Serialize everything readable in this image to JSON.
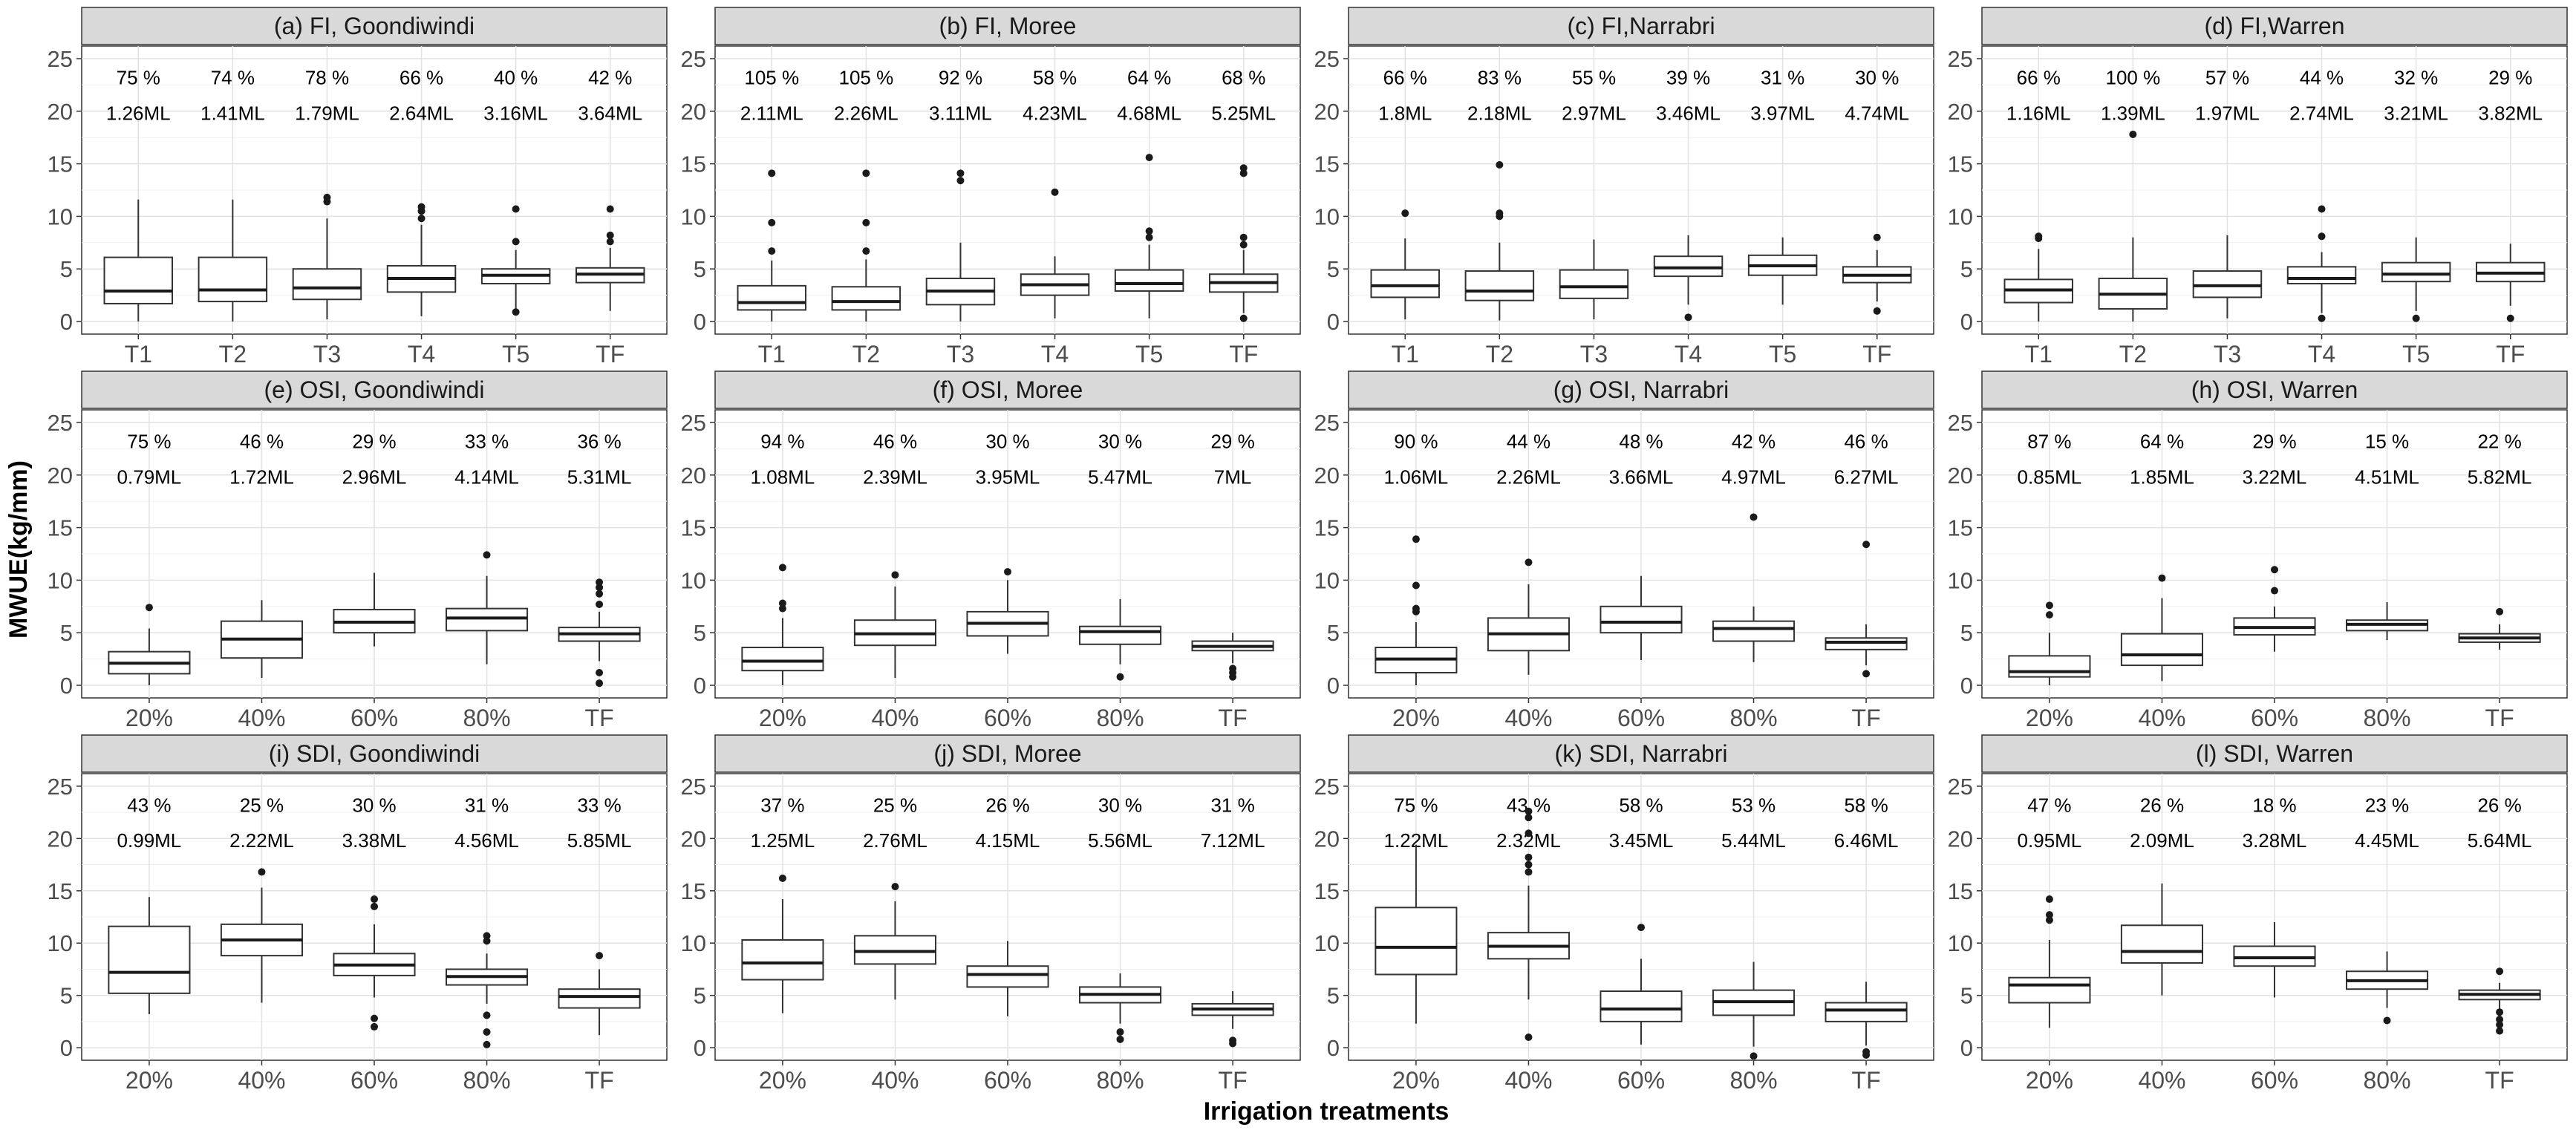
{
  "ylabel": "MWUE(kg/mm)",
  "xlabel": "Irrigation treatments",
  "yticks": [
    "0",
    "5",
    "10",
    "15",
    "20",
    "25"
  ],
  "chart_data": [
    {
      "type": "boxplot",
      "title": "(a) FI, Goondiwindi",
      "ylim": [
        0,
        25
      ],
      "categories": [
        "T1",
        "T2",
        "T3",
        "T4",
        "T5",
        "TF"
      ],
      "pct": [
        "75 %",
        "74 %",
        "78 %",
        "66 %",
        "40 %",
        "42 %"
      ],
      "vol": [
        "1.26ML",
        "1.41ML",
        "1.79ML",
        "2.64ML",
        "3.16ML",
        "3.64ML"
      ],
      "boxes": [
        {
          "lw": 0,
          "q1": 1.7,
          "med": 2.9,
          "q3": 6.1,
          "uw": 11.6,
          "out": []
        },
        {
          "lw": 0,
          "q1": 1.9,
          "med": 3.0,
          "q3": 6.1,
          "uw": 11.6,
          "out": []
        },
        {
          "lw": 0.2,
          "q1": 2.1,
          "med": 3.2,
          "q3": 5.0,
          "uw": 9.8,
          "out": [
            11.4,
            11.8
          ]
        },
        {
          "lw": 0.5,
          "q1": 2.8,
          "med": 4.1,
          "q3": 5.3,
          "uw": 9.2,
          "out": [
            9.8,
            10.5,
            10.9
          ]
        },
        {
          "lw": 1.2,
          "q1": 3.6,
          "med": 4.4,
          "q3": 5.0,
          "uw": 6.8,
          "out": [
            0.9,
            7.6,
            10.7
          ]
        },
        {
          "lw": 1.0,
          "q1": 3.7,
          "med": 4.5,
          "q3": 5.1,
          "uw": 7.0,
          "out": [
            7.6,
            8.2,
            10.7
          ]
        }
      ]
    },
    {
      "type": "boxplot",
      "title": "(b) FI, Moree",
      "ylim": [
        0,
        25
      ],
      "categories": [
        "T1",
        "T2",
        "T3",
        "T4",
        "T5",
        "TF"
      ],
      "pct": [
        "105 %",
        "105 %",
        "92 %",
        "58 %",
        "64 %",
        "68 %"
      ],
      "vol": [
        "2.11ML",
        "2.26ML",
        "3.11ML",
        "4.23ML",
        "4.68ML",
        "5.25ML"
      ],
      "boxes": [
        {
          "lw": 0,
          "q1": 1.1,
          "med": 1.8,
          "q3": 3.4,
          "uw": 5.8,
          "out": [
            6.7,
            9.4,
            14.1
          ]
        },
        {
          "lw": 0,
          "q1": 1.1,
          "med": 1.9,
          "q3": 3.3,
          "uw": 5.9,
          "out": [
            6.7,
            9.4,
            14.1
          ]
        },
        {
          "lw": 0,
          "q1": 1.6,
          "med": 2.9,
          "q3": 4.1,
          "uw": 7.5,
          "out": [
            13.4,
            14.1
          ]
        },
        {
          "lw": 0.3,
          "q1": 2.5,
          "med": 3.5,
          "q3": 4.5,
          "uw": 6.2,
          "out": [
            12.3
          ]
        },
        {
          "lw": 0.3,
          "q1": 2.9,
          "med": 3.6,
          "q3": 4.9,
          "uw": 7.3,
          "out": [
            8.0,
            8.6,
            15.6
          ]
        },
        {
          "lw": 0.8,
          "q1": 2.8,
          "med": 3.7,
          "q3": 4.5,
          "uw": 6.8,
          "out": [
            0.3,
            7.3,
            8.0,
            14.1,
            14.6
          ]
        }
      ]
    },
    {
      "type": "boxplot",
      "title": "(c) FI,Narrabri",
      "ylim": [
        0,
        25
      ],
      "categories": [
        "T1",
        "T2",
        "T3",
        "T4",
        "T5",
        "TF"
      ],
      "pct": [
        "66 %",
        "83 %",
        "55 %",
        "39 %",
        "31 %",
        "30 %"
      ],
      "vol": [
        "1.8ML",
        "2.18ML",
        "2.97ML",
        "3.46ML",
        "3.97ML",
        "4.74ML"
      ],
      "boxes": [
        {
          "lw": 0.2,
          "q1": 2.3,
          "med": 3.4,
          "q3": 4.9,
          "uw": 7.9,
          "out": [
            10.3
          ]
        },
        {
          "lw": 0.1,
          "q1": 2.0,
          "med": 2.9,
          "q3": 4.8,
          "uw": 7.5,
          "out": [
            10.0,
            10.3,
            14.9
          ]
        },
        {
          "lw": 0.2,
          "q1": 2.2,
          "med": 3.3,
          "q3": 4.9,
          "uw": 7.8,
          "out": []
        },
        {
          "lw": 1.6,
          "q1": 4.3,
          "med": 5.1,
          "q3": 6.2,
          "uw": 8.2,
          "out": [
            0.4
          ]
        },
        {
          "lw": 1.6,
          "q1": 4.4,
          "med": 5.3,
          "q3": 6.3,
          "uw": 8.0,
          "out": []
        },
        {
          "lw": 1.9,
          "q1": 3.7,
          "med": 4.4,
          "q3": 5.2,
          "uw": 6.8,
          "out": [
            1.0,
            8.0
          ]
        }
      ]
    },
    {
      "type": "boxplot",
      "title": "(d) FI,Warren",
      "ylim": [
        0,
        25
      ],
      "categories": [
        "T1",
        "T2",
        "T3",
        "T4",
        "T5",
        "TF"
      ],
      "pct": [
        "66 %",
        "100 %",
        "57 %",
        "44 %",
        "32 %",
        "29 %"
      ],
      "vol": [
        "1.16ML",
        "1.39ML",
        "1.97ML",
        "2.74ML",
        "3.21ML",
        "3.82ML"
      ],
      "boxes": [
        {
          "lw": 0,
          "q1": 1.8,
          "med": 3.0,
          "q3": 4.0,
          "uw": 6.9,
          "out": [
            7.9,
            8.1
          ]
        },
        {
          "lw": 0,
          "q1": 1.2,
          "med": 2.6,
          "q3": 4.1,
          "uw": 8.0,
          "out": [
            17.8
          ]
        },
        {
          "lw": 0.3,
          "q1": 2.3,
          "med": 3.4,
          "q3": 4.8,
          "uw": 8.2,
          "out": []
        },
        {
          "lw": 0.8,
          "q1": 3.6,
          "med": 4.1,
          "q3": 5.2,
          "uw": 6.6,
          "out": [
            0.3,
            8.1,
            10.7
          ]
        },
        {
          "lw": 1.0,
          "q1": 3.8,
          "med": 4.5,
          "q3": 5.6,
          "uw": 8.0,
          "out": [
            0.3
          ]
        },
        {
          "lw": 1.5,
          "q1": 3.8,
          "med": 4.6,
          "q3": 5.6,
          "uw": 7.4,
          "out": [
            0.3
          ]
        }
      ]
    },
    {
      "type": "boxplot",
      "title": "(e) OSI, Goondiwindi",
      "ylim": [
        0,
        25
      ],
      "categories": [
        "20%",
        "40%",
        "60%",
        "80%",
        "TF"
      ],
      "pct": [
        "75 %",
        "46 %",
        "29 %",
        "33 %",
        "36 %"
      ],
      "vol": [
        "0.79ML",
        "1.72ML",
        "2.96ML",
        "4.14ML",
        "5.31ML"
      ],
      "boxes": [
        {
          "lw": 0,
          "q1": 1.1,
          "med": 2.1,
          "q3": 3.2,
          "uw": 5.4,
          "out": [
            7.4
          ]
        },
        {
          "lw": 0.7,
          "q1": 2.6,
          "med": 4.4,
          "q3": 6.1,
          "uw": 8.1,
          "out": []
        },
        {
          "lw": 3.7,
          "q1": 5.0,
          "med": 6.0,
          "q3": 7.2,
          "uw": 10.7,
          "out": []
        },
        {
          "lw": 2.0,
          "q1": 5.2,
          "med": 6.4,
          "q3": 7.3,
          "uw": 10.4,
          "out": [
            12.4
          ]
        },
        {
          "lw": 2.3,
          "q1": 4.2,
          "med": 4.9,
          "q3": 5.5,
          "uw": 7.0,
          "out": [
            0.2,
            1.2,
            7.7,
            8.7,
            9.3,
            9.8
          ]
        }
      ]
    },
    {
      "type": "boxplot",
      "title": "(f) OSI, Moree",
      "ylim": [
        0,
        25
      ],
      "categories": [
        "20%",
        "40%",
        "60%",
        "80%",
        "TF"
      ],
      "pct": [
        "94 %",
        "46 %",
        "30 %",
        "30 %",
        "29 %"
      ],
      "vol": [
        "1.08ML",
        "2.39ML",
        "3.95ML",
        "5.47ML",
        "7ML"
      ],
      "boxes": [
        {
          "lw": 0,
          "q1": 1.4,
          "med": 2.3,
          "q3": 3.6,
          "uw": 6.4,
          "out": [
            7.3,
            7.8,
            11.2
          ]
        },
        {
          "lw": 0.7,
          "q1": 3.8,
          "med": 4.9,
          "q3": 6.2,
          "uw": 9.4,
          "out": [
            10.5
          ]
        },
        {
          "lw": 3.0,
          "q1": 4.7,
          "med": 5.9,
          "q3": 7.0,
          "uw": 10.0,
          "out": [
            10.8
          ]
        },
        {
          "lw": 2.0,
          "q1": 3.9,
          "med": 5.1,
          "q3": 5.6,
          "uw": 8.2,
          "out": [
            0.8
          ]
        },
        {
          "lw": 2.1,
          "q1": 3.3,
          "med": 3.7,
          "q3": 4.2,
          "uw": 5.0,
          "out": [
            0.8,
            1.2,
            1.6
          ]
        }
      ]
    },
    {
      "type": "boxplot",
      "title": "(g) OSI, Narrabri",
      "ylim": [
        0,
        25
      ],
      "categories": [
        "20%",
        "40%",
        "60%",
        "80%",
        "TF"
      ],
      "pct": [
        "90 %",
        "44 %",
        "48 %",
        "42 %",
        "46 %"
      ],
      "vol": [
        "1.06ML",
        "2.26ML",
        "3.66ML",
        "4.97ML",
        "6.27ML"
      ],
      "boxes": [
        {
          "lw": 0,
          "q1": 1.2,
          "med": 2.5,
          "q3": 3.6,
          "uw": 6.0,
          "out": [
            7.0,
            7.3,
            9.5,
            13.9
          ]
        },
        {
          "lw": 1.0,
          "q1": 3.3,
          "med": 4.9,
          "q3": 6.4,
          "uw": 9.6,
          "out": [
            11.7
          ]
        },
        {
          "lw": 2.4,
          "q1": 5.0,
          "med": 6.0,
          "q3": 7.5,
          "uw": 10.4,
          "out": []
        },
        {
          "lw": 2.2,
          "q1": 4.2,
          "med": 5.4,
          "q3": 6.1,
          "uw": 7.5,
          "out": [
            16.0
          ]
        },
        {
          "lw": 1.9,
          "q1": 3.4,
          "med": 4.1,
          "q3": 4.5,
          "uw": 5.8,
          "out": [
            1.1,
            13.4
          ]
        }
      ]
    },
    {
      "type": "boxplot",
      "title": "(h) OSI, Warren",
      "ylim": [
        0,
        25
      ],
      "categories": [
        "20%",
        "40%",
        "60%",
        "80%",
        "TF"
      ],
      "pct": [
        "87 %",
        "64 %",
        "29 %",
        "15 %",
        "22 %"
      ],
      "vol": [
        "0.85ML",
        "1.85ML",
        "3.22ML",
        "4.51ML",
        "5.82ML"
      ],
      "boxes": [
        {
          "lw": 0,
          "q1": 0.8,
          "med": 1.3,
          "q3": 2.8,
          "uw": 5.0,
          "out": [
            6.7,
            7.6
          ]
        },
        {
          "lw": 0.4,
          "q1": 1.9,
          "med": 2.9,
          "q3": 4.9,
          "uw": 8.3,
          "out": [
            10.2
          ]
        },
        {
          "lw": 3.2,
          "q1": 4.8,
          "med": 5.5,
          "q3": 6.4,
          "uw": 7.5,
          "out": [
            9.0,
            11.0
          ]
        },
        {
          "lw": 4.3,
          "q1": 5.2,
          "med": 5.8,
          "q3": 6.2,
          "uw": 7.9,
          "out": []
        },
        {
          "lw": 3.4,
          "q1": 4.1,
          "med": 4.5,
          "q3": 4.9,
          "uw": 5.8,
          "out": [
            7.0
          ]
        }
      ]
    },
    {
      "type": "boxplot",
      "title": "(i) SDI, Goondiwindi",
      "ylim": [
        0,
        25
      ],
      "categories": [
        "20%",
        "40%",
        "60%",
        "80%",
        "TF"
      ],
      "pct": [
        "43 %",
        "25 %",
        "30 %",
        "31 %",
        "33 %"
      ],
      "vol": [
        "0.99ML",
        "2.22ML",
        "3.38ML",
        "4.56ML",
        "5.85ML"
      ],
      "boxes": [
        {
          "lw": 3.2,
          "q1": 5.2,
          "med": 7.2,
          "q3": 11.6,
          "uw": 14.4,
          "out": []
        },
        {
          "lw": 4.3,
          "q1": 8.8,
          "med": 10.3,
          "q3": 11.8,
          "uw": 15.3,
          "out": [
            16.8
          ]
        },
        {
          "lw": 4.8,
          "q1": 6.9,
          "med": 7.9,
          "q3": 9.0,
          "uw": 11.8,
          "out": [
            2.0,
            2.8,
            13.5,
            14.2
          ]
        },
        {
          "lw": 4.2,
          "q1": 6.0,
          "med": 6.8,
          "q3": 7.5,
          "uw": 9.0,
          "out": [
            0.3,
            1.5,
            3.1,
            10.2,
            10.7
          ]
        },
        {
          "lw": 1.2,
          "q1": 3.8,
          "med": 4.9,
          "q3": 5.6,
          "uw": 7.5,
          "out": [
            8.8
          ]
        }
      ]
    },
    {
      "type": "boxplot",
      "title": "(j) SDI, Moree",
      "ylim": [
        0,
        25
      ],
      "categories": [
        "20%",
        "40%",
        "60%",
        "80%",
        "TF"
      ],
      "pct": [
        "37 %",
        "25 %",
        "26 %",
        "30 %",
        "31 %"
      ],
      "vol": [
        "1.25ML",
        "2.76ML",
        "4.15ML",
        "5.56ML",
        "7.12ML"
      ],
      "boxes": [
        {
          "lw": 3.3,
          "q1": 6.5,
          "med": 8.1,
          "q3": 10.3,
          "uw": 14.2,
          "out": [
            16.2
          ]
        },
        {
          "lw": 4.6,
          "q1": 8.0,
          "med": 9.2,
          "q3": 10.7,
          "uw": 14.0,
          "out": [
            15.4
          ]
        },
        {
          "lw": 3.0,
          "q1": 5.8,
          "med": 7.0,
          "q3": 7.8,
          "uw": 10.2,
          "out": []
        },
        {
          "lw": 2.3,
          "q1": 4.3,
          "med": 5.1,
          "q3": 5.8,
          "uw": 7.1,
          "out": [
            0.8,
            1.5
          ]
        },
        {
          "lw": 1.8,
          "q1": 3.1,
          "med": 3.7,
          "q3": 4.2,
          "uw": 5.4,
          "out": [
            0.4,
            0.7
          ]
        }
      ]
    },
    {
      "type": "boxplot",
      "title": "(k) SDI, Narrabri",
      "ylim": [
        0,
        25
      ],
      "categories": [
        "20%",
        "40%",
        "60%",
        "80%",
        "TF"
      ],
      "pct": [
        "75 %",
        "43 %",
        "58 %",
        "53 %",
        "58 %"
      ],
      "vol": [
        "1.22ML",
        "2.32ML",
        "3.45ML",
        "5.44ML",
        "6.46ML"
      ],
      "boxes": [
        {
          "lw": 2.3,
          "q1": 7.0,
          "med": 9.6,
          "q3": 13.4,
          "uw": 19.4,
          "out": []
        },
        {
          "lw": 4.6,
          "q1": 8.5,
          "med": 9.7,
          "q3": 11.0,
          "uw": 15.5,
          "out": [
            1.0,
            16.8,
            17.5,
            18.2,
            20.5,
            22.0,
            22.6
          ]
        },
        {
          "lw": 0.3,
          "q1": 2.5,
          "med": 3.7,
          "q3": 5.4,
          "uw": 8.5,
          "out": [
            11.5
          ]
        },
        {
          "lw": 0.1,
          "q1": 3.1,
          "med": 4.4,
          "q3": 5.5,
          "uw": 8.2,
          "out": [
            -0.8
          ]
        },
        {
          "lw": 0.2,
          "q1": 2.5,
          "med": 3.6,
          "q3": 4.3,
          "uw": 6.3,
          "out": [
            -0.4,
            -0.7
          ]
        }
      ]
    },
    {
      "type": "boxplot",
      "title": "(l) SDI,  Warren",
      "ylim": [
        0,
        25
      ],
      "categories": [
        "20%",
        "40%",
        "60%",
        "80%",
        "TF"
      ],
      "pct": [
        "47 %",
        "26 %",
        "18 %",
        "23 %",
        "26 %"
      ],
      "vol": [
        "0.95ML",
        "2.09ML",
        "3.28ML",
        "4.45ML",
        "5.64ML"
      ],
      "boxes": [
        {
          "lw": 1.9,
          "q1": 4.3,
          "med": 6.0,
          "q3": 6.7,
          "uw": 10.3,
          "out": [
            12.2,
            12.7,
            14.2
          ]
        },
        {
          "lw": 5.0,
          "q1": 8.1,
          "med": 9.2,
          "q3": 11.7,
          "uw": 15.7,
          "out": []
        },
        {
          "lw": 4.8,
          "q1": 7.8,
          "med": 8.6,
          "q3": 9.7,
          "uw": 12.0,
          "out": []
        },
        {
          "lw": 3.8,
          "q1": 5.6,
          "med": 6.4,
          "q3": 7.3,
          "uw": 9.2,
          "out": [
            2.6
          ]
        },
        {
          "lw": 3.6,
          "q1": 4.6,
          "med": 5.1,
          "q3": 5.5,
          "uw": 6.2,
          "out": [
            1.6,
            2.2,
            2.7,
            3.4,
            7.3
          ]
        }
      ]
    }
  ]
}
